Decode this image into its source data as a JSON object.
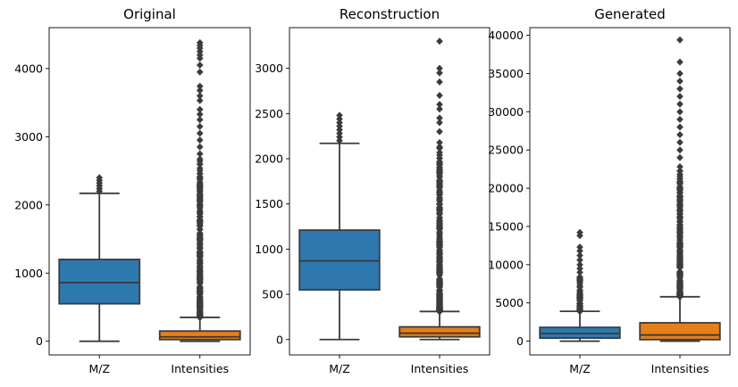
{
  "chart_data": [
    {
      "type": "box",
      "title": "Original",
      "categories": [
        "M/Z",
        "Intensities"
      ],
      "ylim": [
        -200,
        4600
      ],
      "yticks": [
        0,
        1000,
        2000,
        3000,
        4000
      ],
      "series": [
        {
          "category": "M/Z",
          "color": "#2e78b0",
          "min": 0,
          "q1": 550,
          "median": 860,
          "q3": 1200,
          "whisker_high": 2170,
          "outliers": [
            2200,
            2240,
            2280,
            2320,
            2360,
            2400
          ]
        },
        {
          "category": "Intensities",
          "color": "#e67e1a",
          "min": 0,
          "q1": 25,
          "median": 65,
          "q3": 150,
          "whisker_high": 350,
          "outlier_band": [
            350,
            2700
          ],
          "outliers": [
            2750,
            2850,
            2950,
            3050,
            3150,
            3250,
            3330,
            3400,
            3530,
            3600,
            3680,
            3740,
            3950,
            4050,
            4150,
            4200,
            4250,
            4300,
            4340,
            4380
          ]
        }
      ]
    },
    {
      "type": "box",
      "title": "Reconstruction",
      "categories": [
        "M/Z",
        "Intensities"
      ],
      "ylim": [
        -170,
        3450
      ],
      "yticks": [
        0,
        500,
        1000,
        1500,
        2000,
        2500,
        3000
      ],
      "series": [
        {
          "category": "M/Z",
          "color": "#2e78b0",
          "min": 0,
          "q1": 550,
          "median": 870,
          "q3": 1210,
          "whisker_high": 2170,
          "outliers": [
            2200,
            2240,
            2280,
            2320,
            2360,
            2400,
            2440,
            2480
          ]
        },
        {
          "category": "Intensities",
          "color": "#e67e1a",
          "min": 0,
          "q1": 30,
          "median": 70,
          "q3": 140,
          "whisker_high": 310,
          "outlier_band": [
            310,
            2200
          ],
          "outliers": [
            2300,
            2400,
            2450,
            2550,
            2600,
            2700,
            2850,
            2950,
            3000,
            3300
          ]
        }
      ]
    },
    {
      "type": "box",
      "title": "Generated",
      "categories": [
        "M/Z",
        "Intensities"
      ],
      "ylim": [
        -1800,
        41000
      ],
      "yticks": [
        0,
        5000,
        10000,
        15000,
        20000,
        25000,
        30000,
        35000,
        40000
      ],
      "series": [
        {
          "category": "M/Z",
          "color": "#2e78b0",
          "min": 0,
          "q1": 400,
          "median": 1000,
          "q3": 1800,
          "whisker_high": 3900,
          "outlier_band": [
            3900,
            8500
          ],
          "outliers": [
            9000,
            9500,
            10000,
            10600,
            11200,
            11800,
            12300,
            13800,
            14200
          ]
        },
        {
          "category": "Intensities",
          "color": "#e67e1a",
          "min": 0,
          "q1": 200,
          "median": 800,
          "q3": 2400,
          "whisker_high": 5800,
          "outlier_band": [
            5800,
            23000
          ],
          "outliers": [
            24000,
            25000,
            26000,
            27000,
            28000,
            29000,
            30000,
            31000,
            32000,
            33000,
            34000,
            35000,
            36500,
            39400
          ]
        }
      ]
    }
  ]
}
